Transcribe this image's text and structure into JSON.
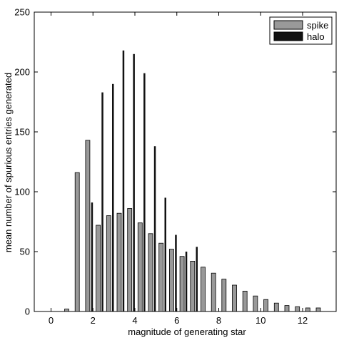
{
  "chart_data": {
    "type": "bar",
    "title": "",
    "xlabel": "magnitude of generating star",
    "ylabel": "mean number of spurious entries generated",
    "xlim": [
      -0.8,
      13.6
    ],
    "ylim": [
      0,
      250
    ],
    "xticks": [
      0,
      2,
      4,
      6,
      8,
      10,
      12
    ],
    "yticks": [
      0,
      50,
      100,
      150,
      200,
      250
    ],
    "grid": false,
    "legend_position": "top-right",
    "series": [
      {
        "name": "spike",
        "color": "#999999",
        "x": [
          0.75,
          1.25,
          1.75,
          2.25,
          2.75,
          3.25,
          3.75,
          4.25,
          4.75,
          5.25,
          5.75,
          6.25,
          6.75,
          7.25,
          7.75,
          8.25,
          8.75,
          9.25,
          9.75,
          10.25,
          10.75,
          11.25,
          11.75,
          12.25,
          12.75
        ],
        "values": [
          2,
          116,
          143,
          72,
          80,
          82,
          86,
          74,
          65,
          57,
          52,
          46,
          42,
          37,
          32,
          27,
          22,
          17,
          13,
          10,
          7,
          5,
          4,
          3,
          3
        ]
      },
      {
        "name": "halo",
        "color": "#111111",
        "x": [
          1.75,
          2.25,
          2.75,
          3.25,
          3.75,
          4.25,
          4.75,
          5.25,
          5.75,
          6.25,
          6.75
        ],
        "values": [
          91,
          183,
          190,
          218,
          215,
          199,
          138,
          95,
          64,
          50,
          54
        ]
      }
    ]
  }
}
